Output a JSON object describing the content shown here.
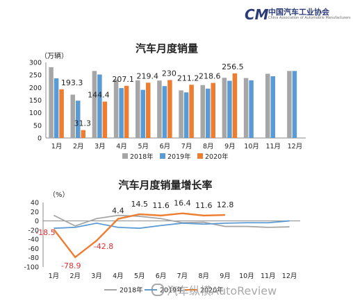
{
  "logo": {
    "mark": "CM",
    "name_cn": "中国汽车工业协会",
    "name_en": "China Association of Automobile Manufacturers"
  },
  "watermark": "汽车纵横AutoReview",
  "colors": {
    "s2018": "#a6a6a6",
    "s2019": "#5b9bd5",
    "s2020": "#ed7d31",
    "label_red": "#e03030"
  },
  "chart_data": [
    {
      "type": "bar",
      "title": "汽车月度销量",
      "ylabel": "（万辆）",
      "ylim": [
        0,
        300
      ],
      "yticks": [
        0,
        50,
        100,
        150,
        200,
        250,
        300
      ],
      "categories": [
        "1月",
        "2月",
        "3月",
        "4月",
        "5月",
        "6月",
        "7月",
        "8月",
        "9月",
        "10月",
        "11月",
        "12月"
      ],
      "series": [
        {
          "name": "2018年",
          "values": [
            281,
            172,
            266,
            232,
            229,
            228,
            189,
            210,
            239,
            238,
            255,
            266
          ]
        },
        {
          "name": "2019年",
          "values": [
            237,
            148,
            252,
            198,
            191,
            206,
            181,
            196,
            227,
            229,
            245,
            266
          ]
        },
        {
          "name": "2020年",
          "values": [
            193.3,
            31.3,
            144.4,
            207.1,
            219.4,
            230,
            211.2,
            218.6,
            256.5,
            null,
            null,
            null
          ]
        }
      ],
      "data_labels": [
        "193.3",
        "31.3",
        "144.4",
        "207.1",
        "219.4",
        "230",
        "211.2",
        "218.6",
        "256.5"
      ],
      "legend": [
        "2018年",
        "2019年",
        "2020年"
      ],
      "legend_position": "bottom",
      "grid": false
    },
    {
      "type": "line",
      "title": "汽车月度销量增长率",
      "ylabel": "（%）",
      "ylim": [
        -100,
        40
      ],
      "yticks": [
        40,
        20,
        0,
        -20,
        -40,
        -60,
        -80,
        -100
      ],
      "categories": [
        "1月",
        "2月",
        "3月",
        "4月",
        "5月",
        "6月",
        "7月",
        "8月",
        "9月",
        "10月",
        "11月",
        "12月"
      ],
      "series": [
        {
          "name": "2018年",
          "values": [
            12,
            -11,
            5,
            12,
            10,
            5,
            -4,
            -3,
            -12,
            -12,
            -14,
            -13
          ]
        },
        {
          "name": "2019年",
          "values": [
            -16,
            -14,
            -5,
            -14,
            -16,
            -10,
            -5,
            -7,
            -5,
            -4,
            -4,
            0
          ]
        },
        {
          "name": "2020年",
          "values": [
            -18.5,
            -78.9,
            -42.8,
            4.4,
            14.5,
            11.6,
            16.4,
            11.6,
            12.8,
            null,
            null,
            null
          ]
        }
      ],
      "data_labels": [
        "-18.5",
        "-78.9",
        "-42.8",
        "4.4",
        "14.5",
        "11.6",
        "16.4",
        "11.6",
        "12.8"
      ],
      "legend": [
        "2018年",
        "2019年",
        "2020年"
      ],
      "legend_position": "bottom",
      "grid": false
    }
  ]
}
